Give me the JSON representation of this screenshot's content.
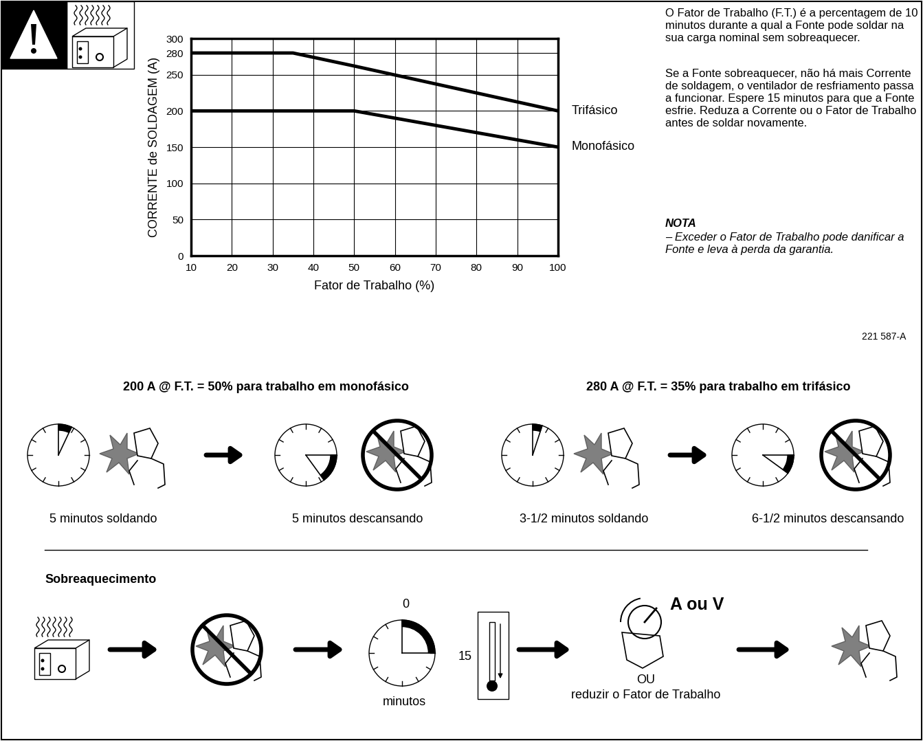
{
  "chart_data": {
    "type": "line",
    "x": [
      10,
      35,
      50,
      100
    ],
    "series": [
      {
        "name": "Trifásico",
        "color": "#000000",
        "values": [
          280,
          280,
          262,
          200
        ]
      },
      {
        "name": "Monofásico",
        "color": "#000000",
        "values": [
          200,
          200,
          200,
          150
        ]
      }
    ],
    "x_label": "Fator de Trabalho (%)",
    "y_label": "CORRENTE de SOLDAGEM (A)",
    "xlim": [
      10,
      100
    ],
    "xticks": [
      10,
      20,
      30,
      40,
      50,
      60,
      70,
      80,
      90,
      100
    ],
    "ylim": [
      0,
      300
    ],
    "yticks": [
      0,
      50,
      100,
      150,
      200,
      250,
      280,
      300
    ],
    "grid": true
  },
  "figure_code": "221 587-A",
  "description": {
    "paragraphs": [
      "O Fator de Trabalho (F.T.) é a percentagem de 10 minutos durante a qual a Fonte pode soldar na sua carga nominal sem sobreaquecer.",
      "Se a Fonte sobreaquecer, não há mais Corrente de soldagem, o ventilador de resfriamento passa a funcionar. Espere 15 minutos para que a Fonte esfrie. Reduza a Corrente ou o Fator de Trabalho antes de soldar novamente."
    ],
    "note_label": "NOTA",
    "note_text": "– Exceder o Fator de Trabalho pode danificar a Fonte e leva à perda da garantia."
  },
  "examples": [
    {
      "heading": "200 A @ F.T. = 50% para trabalho em monofásico",
      "steps": [
        "5 minutos soldando",
        "5 minutos descansando"
      ]
    },
    {
      "heading": "280 A @ F.T. = 35% para trabalho em trifásico",
      "steps": [
        "3-1/2 minutos soldando",
        "6-1/2 minutos descansando"
      ]
    }
  ],
  "overheating": {
    "title": "Sobreaquecimento",
    "clock_start": 0,
    "clock_end": 15,
    "clock_unit": "minutos",
    "control": "A ou V",
    "or": "OU",
    "alternative": "reduzir o Fator de Trabalho"
  }
}
